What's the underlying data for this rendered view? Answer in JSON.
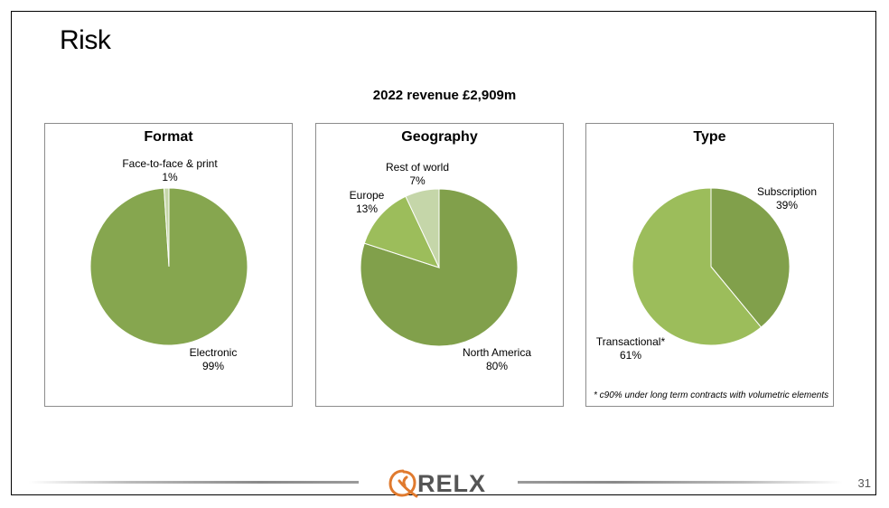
{
  "slide": {
    "title": "Risk",
    "subtitle": "2022 revenue £2,909m",
    "page_number": "31"
  },
  "logo": {
    "text": "RELX",
    "accent_color": "#e07a2e"
  },
  "colors": {
    "dark_green": "#81a04b",
    "mid_green": "#9cbd5b",
    "light_green": "#c5d6a9"
  },
  "chart_data": [
    {
      "type": "pie",
      "title": "Format",
      "slices": [
        {
          "label": "Electronic",
          "pct_text": "99%",
          "value": 99,
          "color": "#86a64f"
        },
        {
          "label": "Face-to-face & print",
          "pct_text": "1%",
          "value": 1,
          "color": "#c5d6a9"
        }
      ]
    },
    {
      "type": "pie",
      "title": "Geography",
      "slices": [
        {
          "label": "North America",
          "pct_text": "80%",
          "value": 80,
          "color": "#81a04b"
        },
        {
          "label": "Europe",
          "pct_text": "13%",
          "value": 13,
          "color": "#9cbd5b"
        },
        {
          "label": "Rest of world",
          "pct_text": "7%",
          "value": 7,
          "color": "#c5d6a9"
        }
      ]
    },
    {
      "type": "pie",
      "title": "Type",
      "slices": [
        {
          "label": "Subscription",
          "pct_text": "39%",
          "value": 39,
          "color": "#81a04b"
        },
        {
          "label": "Transactional*",
          "pct_text": "61%",
          "value": 61,
          "color": "#9cbd5b"
        }
      ],
      "footnote": "* c90% under long term contracts with volumetric elements"
    }
  ]
}
